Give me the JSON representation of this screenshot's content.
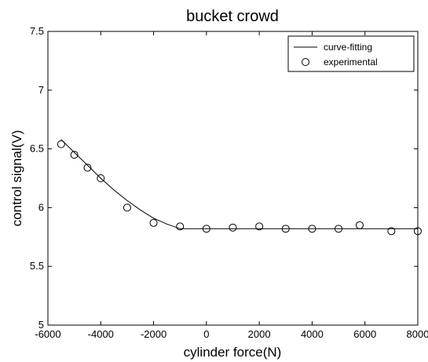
{
  "chart_data": {
    "type": "line",
    "title": "bucket crowd",
    "xlabel": "cylinder force(N)",
    "ylabel": "control signal(V)",
    "xlim": [
      -6000,
      8000
    ],
    "ylim": [
      5,
      7.5
    ],
    "xticks": [
      -6000,
      -4000,
      -2000,
      0,
      2000,
      4000,
      6000,
      8000
    ],
    "yticks": [
      5,
      5.5,
      6,
      6.5,
      7,
      7.5
    ],
    "xtick_labels": [
      "-6000",
      "-4000",
      "-2000",
      "0",
      "2000",
      "4000",
      "6000",
      "8000"
    ],
    "ytick_labels": [
      "5",
      "5.5",
      "6",
      "6.5",
      "7",
      "7.5"
    ],
    "grid": false,
    "legend_position": "top-right",
    "series": [
      {
        "name": "curve-fitting",
        "style": "line",
        "color": "#000000",
        "x": [
          -5500,
          -5000,
          -4500,
          -4000,
          -3500,
          -3000,
          -2500,
          -2000,
          -1500,
          -1000,
          0,
          1000,
          2000,
          3000,
          4000,
          5000,
          6000,
          7000,
          8000
        ],
        "y": [
          6.58,
          6.47,
          6.36,
          6.25,
          6.15,
          6.06,
          5.98,
          5.91,
          5.86,
          5.82,
          5.82,
          5.82,
          5.82,
          5.82,
          5.82,
          5.82,
          5.82,
          5.82,
          5.82
        ]
      },
      {
        "name": "experimental",
        "style": "marker-circle",
        "color": "#000000",
        "x": [
          -5500,
          -5000,
          -4500,
          -4000,
          -3000,
          -2000,
          -1000,
          0,
          1000,
          2000,
          3000,
          4000,
          5000,
          5800,
          7000,
          8000
        ],
        "y": [
          6.54,
          6.45,
          6.34,
          6.25,
          6.0,
          5.87,
          5.84,
          5.82,
          5.83,
          5.84,
          5.82,
          5.82,
          5.82,
          5.85,
          5.8,
          5.8
        ]
      }
    ]
  }
}
